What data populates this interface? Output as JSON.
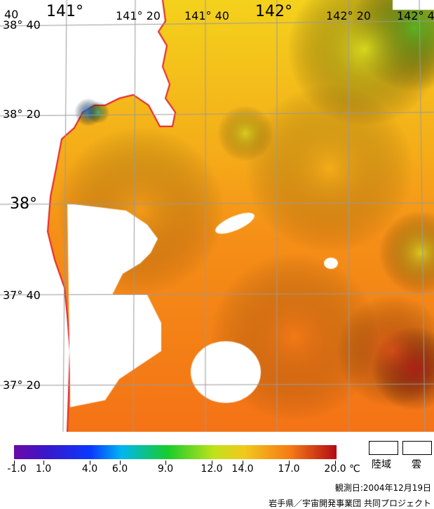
{
  "map": {
    "lat_labels": [
      "38° 40",
      "38° 20",
      "38°",
      "37° 40",
      "37° 20"
    ],
    "lon_labels": [
      "141°",
      "141° 20",
      "141° 40",
      "142°",
      "142° 20",
      "142° 4"
    ],
    "corner_label": "40",
    "colors": {
      "land_boundary": "#e3212b",
      "grid": "#9a9a9a",
      "cloud": "#ffffff"
    }
  },
  "legend": {
    "colorbar_stops": [
      {
        "value": -1.0,
        "color": "#6a0aa8"
      },
      {
        "value": 1.0,
        "color": "#3a17c8"
      },
      {
        "value": 4.0,
        "color": "#0a39ff"
      },
      {
        "value": 6.0,
        "color": "#00b6f0"
      },
      {
        "value": 9.0,
        "color": "#17cc2b"
      },
      {
        "value": 12.0,
        "color": "#c0e21a"
      },
      {
        "value": 14.0,
        "color": "#f2c81c"
      },
      {
        "value": 17.0,
        "color": "#f57a16"
      },
      {
        "value": 20.0,
        "color": "#b20b14"
      }
    ],
    "tick_labels": [
      "-1.0",
      "1.0",
      "4.0",
      "6.0",
      "9.0",
      "12.0",
      "14.0",
      "17.0",
      "20.0"
    ],
    "unit": "℃",
    "land_label": "陸域",
    "cloud_label": "雲"
  },
  "footer": {
    "observation_date": "観測日:2004年12月19日",
    "credit": "岩手県／宇宙開発事業団 共同プロジェクト"
  }
}
